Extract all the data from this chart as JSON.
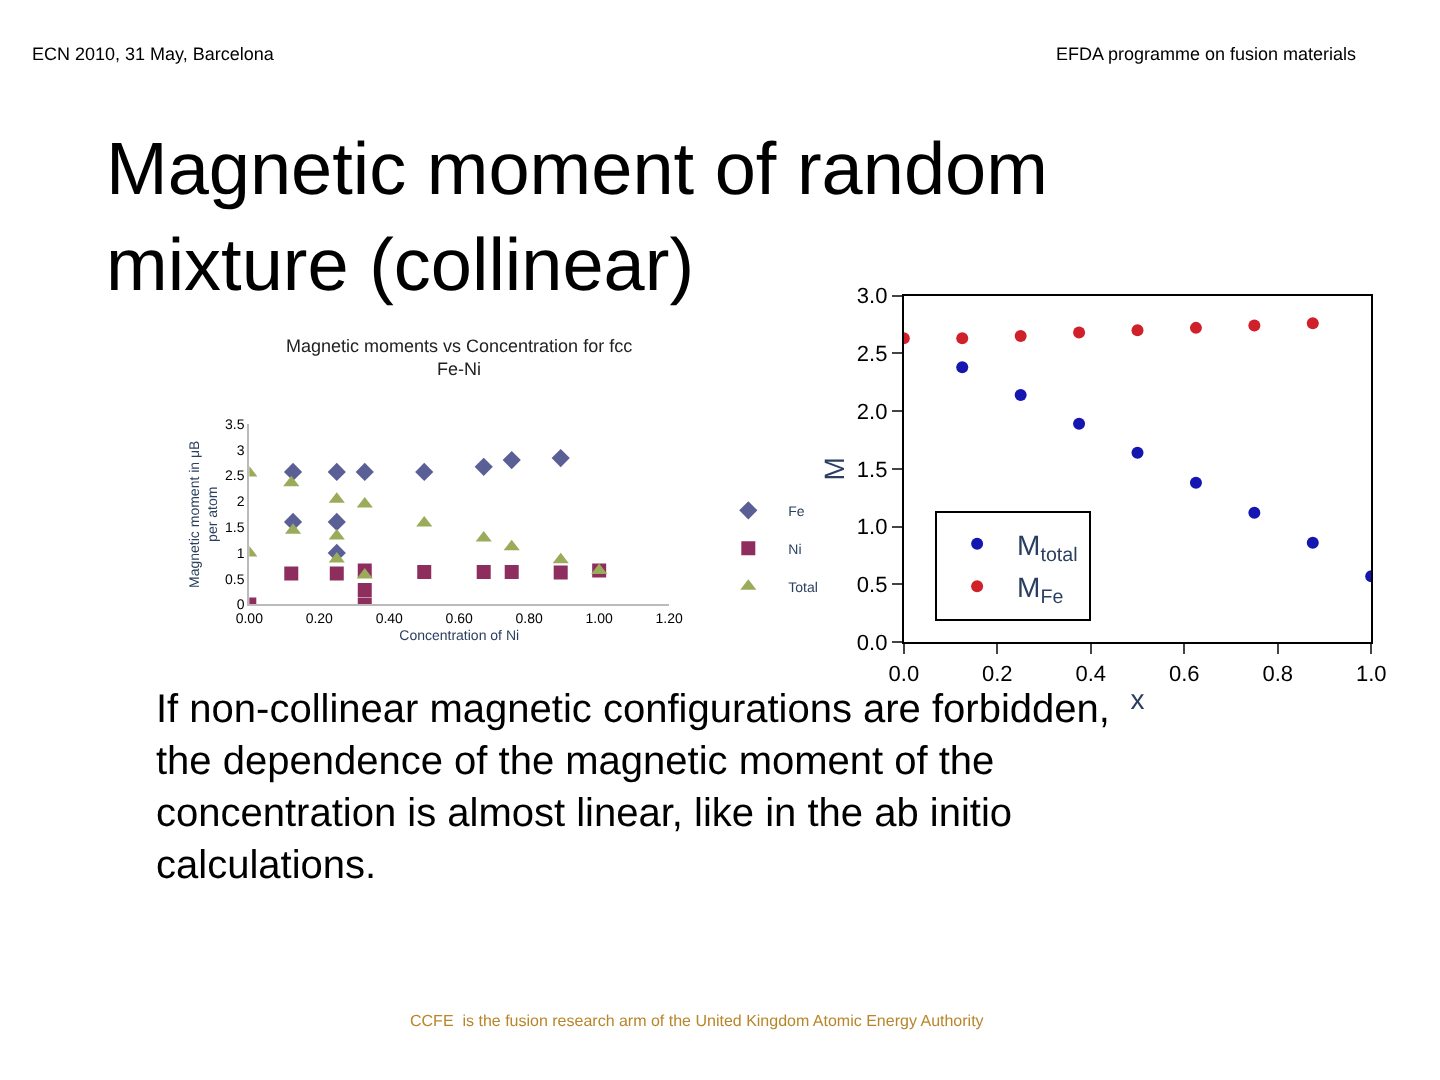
{
  "chart_data": [
    {
      "type": "other",
      "title": "Magnetic moment of random mixture (collinear)",
      "annotations": [
        "ECN 2010, 31 May, Barcelona",
        "EFDA programme on fusion materials",
        "If non-collinear magnetic configurations are forbidden, the dependence of the magnetic moment of the concentration is almost linear, like in the ab initio calculations.",
        "CCFE  is the fusion research arm of the United Kingdom Atomic Energy Authority"
      ]
    },
    {
      "type": "scatter",
      "title": "Magnetic moments vs Concentration for fcc Fe-Ni",
      "xlabel": "Concentration of Ni",
      "ylabel": "Magnetic moment in μB per atom",
      "xlim": [
        0,
        1.2
      ],
      "xticks": [
        {
          "value": 0,
          "label": "0.00"
        },
        {
          "value": 0.2,
          "label": "0.20"
        },
        {
          "value": 0.4,
          "label": "0.40"
        },
        {
          "value": 0.6,
          "label": "0.60"
        },
        {
          "value": 0.8,
          "label": "0.80"
        },
        {
          "value": 1.0,
          "label": "1.00"
        },
        {
          "value": 1.2,
          "label": "1.20"
        }
      ],
      "ylim": [
        0,
        3.5
      ],
      "yticks": [
        0,
        0.5,
        1,
        1.5,
        2,
        2.5,
        3,
        3.5
      ],
      "legend": "right",
      "series": [
        {
          "name": "Fe",
          "color": "#5a5f96",
          "marker": "diamond",
          "x": [
            0.125,
            0.25,
            0.33,
            0.5,
            0.67,
            0.75,
            0.89,
            0.125,
            0.25,
            0.25
          ],
          "values": [
            2.57,
            2.57,
            2.57,
            2.57,
            2.67,
            2.8,
            2.84,
            1.6,
            1.6,
            1.0
          ]
        },
        {
          "name": "Ni",
          "color": "#8e2e5e",
          "marker": "square",
          "x": [
            0,
            0.12,
            0.25,
            0.33,
            0.33,
            0.33,
            0.5,
            0.67,
            0.75,
            0.89,
            1.0
          ],
          "values": [
            0,
            0.6,
            0.6,
            0.66,
            0.28,
            0,
            0.63,
            0.63,
            0.63,
            0.62,
            0.66
          ]
        },
        {
          "name": "Total",
          "color": "#9aab5a",
          "marker": "triangle",
          "x": [
            0,
            0,
            0.12,
            0.125,
            0.25,
            0.25,
            0.25,
            0.33,
            0.33,
            0.5,
            0.67,
            0.75,
            0.89,
            1.0
          ],
          "values": [
            2.55,
            1.0,
            2.36,
            1.44,
            2.04,
            1.33,
            0.88,
            1.95,
            0.57,
            1.58,
            1.29,
            1.12,
            0.87,
            0.66
          ]
        }
      ]
    },
    {
      "type": "scatter",
      "xlabel": "x",
      "ylabel": "M",
      "xlim": [
        0,
        1.0
      ],
      "xticks": [
        {
          "value": 0,
          "label": "0.0"
        },
        0.2,
        0.4,
        0.6,
        0.8,
        {
          "value": 1.0,
          "label": "1.0"
        }
      ],
      "ylim": [
        0,
        3.0
      ],
      "yticks": [
        {
          "value": 0,
          "label": "0.0"
        },
        0.5,
        {
          "value": 1.0,
          "label": "1.0"
        },
        1.5,
        {
          "value": 2.0,
          "label": "2.0"
        },
        2.5,
        {
          "value": 3.0,
          "label": "3.0"
        }
      ],
      "legend": "left",
      "marker": "circle",
      "series": [
        {
          "name": "M$_{total}$",
          "color": "#1515b0",
          "x": [
            0.125,
            0.25,
            0.375,
            0.5,
            0.625,
            0.75,
            0.875,
            1.0
          ],
          "values": [
            2.38,
            2.14,
            1.89,
            1.64,
            1.38,
            1.12,
            0.86,
            0.57
          ]
        },
        {
          "name": "M$_{Fe}$",
          "color": "#d0202a",
          "x": [
            0,
            0.125,
            0.25,
            0.375,
            0.5,
            0.625,
            0.75,
            0.875
          ],
          "values": [
            2.63,
            2.63,
            2.65,
            2.68,
            2.7,
            2.72,
            2.74,
            2.76
          ]
        }
      ]
    }
  ]
}
